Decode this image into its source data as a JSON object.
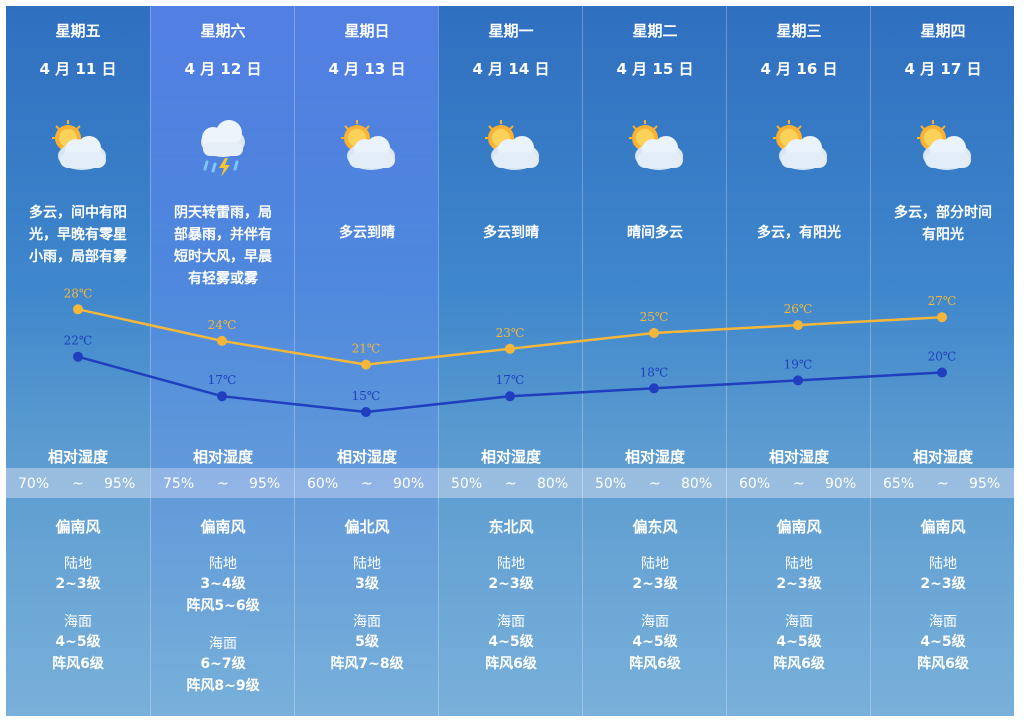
{
  "days": [
    {
      "weekday": "星期五",
      "date": "4 月 11 日",
      "weather": [
        "多云，间中有阳",
        "光，早晚有零星",
        "小雨，局部有雾"
      ],
      "icon": "partly-cloudy-icon",
      "high": 28,
      "low": 22,
      "high_label": "28℃",
      "low_label": "22℃",
      "humidity_label": "相对湿度",
      "hum_min": "70%",
      "hum_sep": "~",
      "hum_max": "95%",
      "wind_dir": "偏南风",
      "land_label": "陆地",
      "land": [
        "2~3级"
      ],
      "sea_label": "海面",
      "sea": [
        "4~5级",
        "阵风6级"
      ]
    },
    {
      "weekday": "星期六",
      "date": "4 月 12 日",
      "weather": [
        "阴天转雷雨，局",
        "部暴雨，并伴有",
        "短时大风，早晨",
        "有轻雾或雾"
      ],
      "icon": "thunderstorm-icon",
      "high": 24,
      "low": 17,
      "high_label": "24℃",
      "low_label": "17℃",
      "humidity_label": "相对湿度",
      "hum_min": "75%",
      "hum_sep": "~",
      "hum_max": "95%",
      "wind_dir": "偏南风",
      "land_label": "陆地",
      "land": [
        "3~4级",
        "阵风5~6级"
      ],
      "sea_label": "海面",
      "sea": [
        "6~7级",
        "阵风8~9级"
      ]
    },
    {
      "weekday": "星期日",
      "date": "4 月 13 日",
      "weather": [
        "多云到晴"
      ],
      "icon": "partly-cloudy-icon",
      "high": 21,
      "low": 15,
      "high_label": "21℃",
      "low_label": "15℃",
      "humidity_label": "相对湿度",
      "hum_min": "60%",
      "hum_sep": "~",
      "hum_max": "90%",
      "wind_dir": "偏北风",
      "land_label": "陆地",
      "land": [
        "3级"
      ],
      "sea_label": "海面",
      "sea": [
        "5级",
        "阵风7~8级"
      ]
    },
    {
      "weekday": "星期一",
      "date": "4 月 14 日",
      "weather": [
        "多云到晴"
      ],
      "icon": "partly-cloudy-icon",
      "high": 23,
      "low": 17,
      "high_label": "23℃",
      "low_label": "17℃",
      "humidity_label": "相对湿度",
      "hum_min": "50%",
      "hum_sep": "~",
      "hum_max": "80%",
      "wind_dir": "东北风",
      "land_label": "陆地",
      "land": [
        "2~3级"
      ],
      "sea_label": "海面",
      "sea": [
        "4~5级",
        "阵风6级"
      ]
    },
    {
      "weekday": "星期二",
      "date": "4 月 15 日",
      "weather": [
        "晴间多云"
      ],
      "icon": "partly-cloudy-icon",
      "high": 25,
      "low": 18,
      "high_label": "25℃",
      "low_label": "18℃",
      "humidity_label": "相对湿度",
      "hum_min": "50%",
      "hum_sep": "~",
      "hum_max": "80%",
      "wind_dir": "偏东风",
      "land_label": "陆地",
      "land": [
        "2~3级"
      ],
      "sea_label": "海面",
      "sea": [
        "4~5级",
        "阵风6级"
      ]
    },
    {
      "weekday": "星期三",
      "date": "4 月 16 日",
      "weather": [
        "多云，有阳光"
      ],
      "icon": "partly-cloudy-icon",
      "high": 26,
      "low": 19,
      "high_label": "26℃",
      "low_label": "19℃",
      "humidity_label": "相对湿度",
      "hum_min": "60%",
      "hum_sep": "~",
      "hum_max": "90%",
      "wind_dir": "偏南风",
      "land_label": "陆地",
      "land": [
        "2~3级"
      ],
      "sea_label": "海面",
      "sea": [
        "4~5级",
        "阵风6级"
      ]
    },
    {
      "weekday": "星期四",
      "date": "4 月 17 日",
      "weather": [
        "多云，部分时间",
        "有阳光"
      ],
      "icon": "partly-cloudy-icon",
      "high": 27,
      "low": 20,
      "high_label": "27℃",
      "low_label": "20℃",
      "humidity_label": "相对湿度",
      "hum_min": "65%",
      "hum_sep": "~",
      "hum_max": "95%",
      "wind_dir": "偏南风",
      "land_label": "陆地",
      "land": [
        "2~3级"
      ],
      "sea_label": "海面",
      "sea": [
        "4~5级",
        "阵风6级"
      ]
    }
  ],
  "colors": {
    "high_line": "#f5b73b",
    "low_line": "#1f3fbf"
  }
}
